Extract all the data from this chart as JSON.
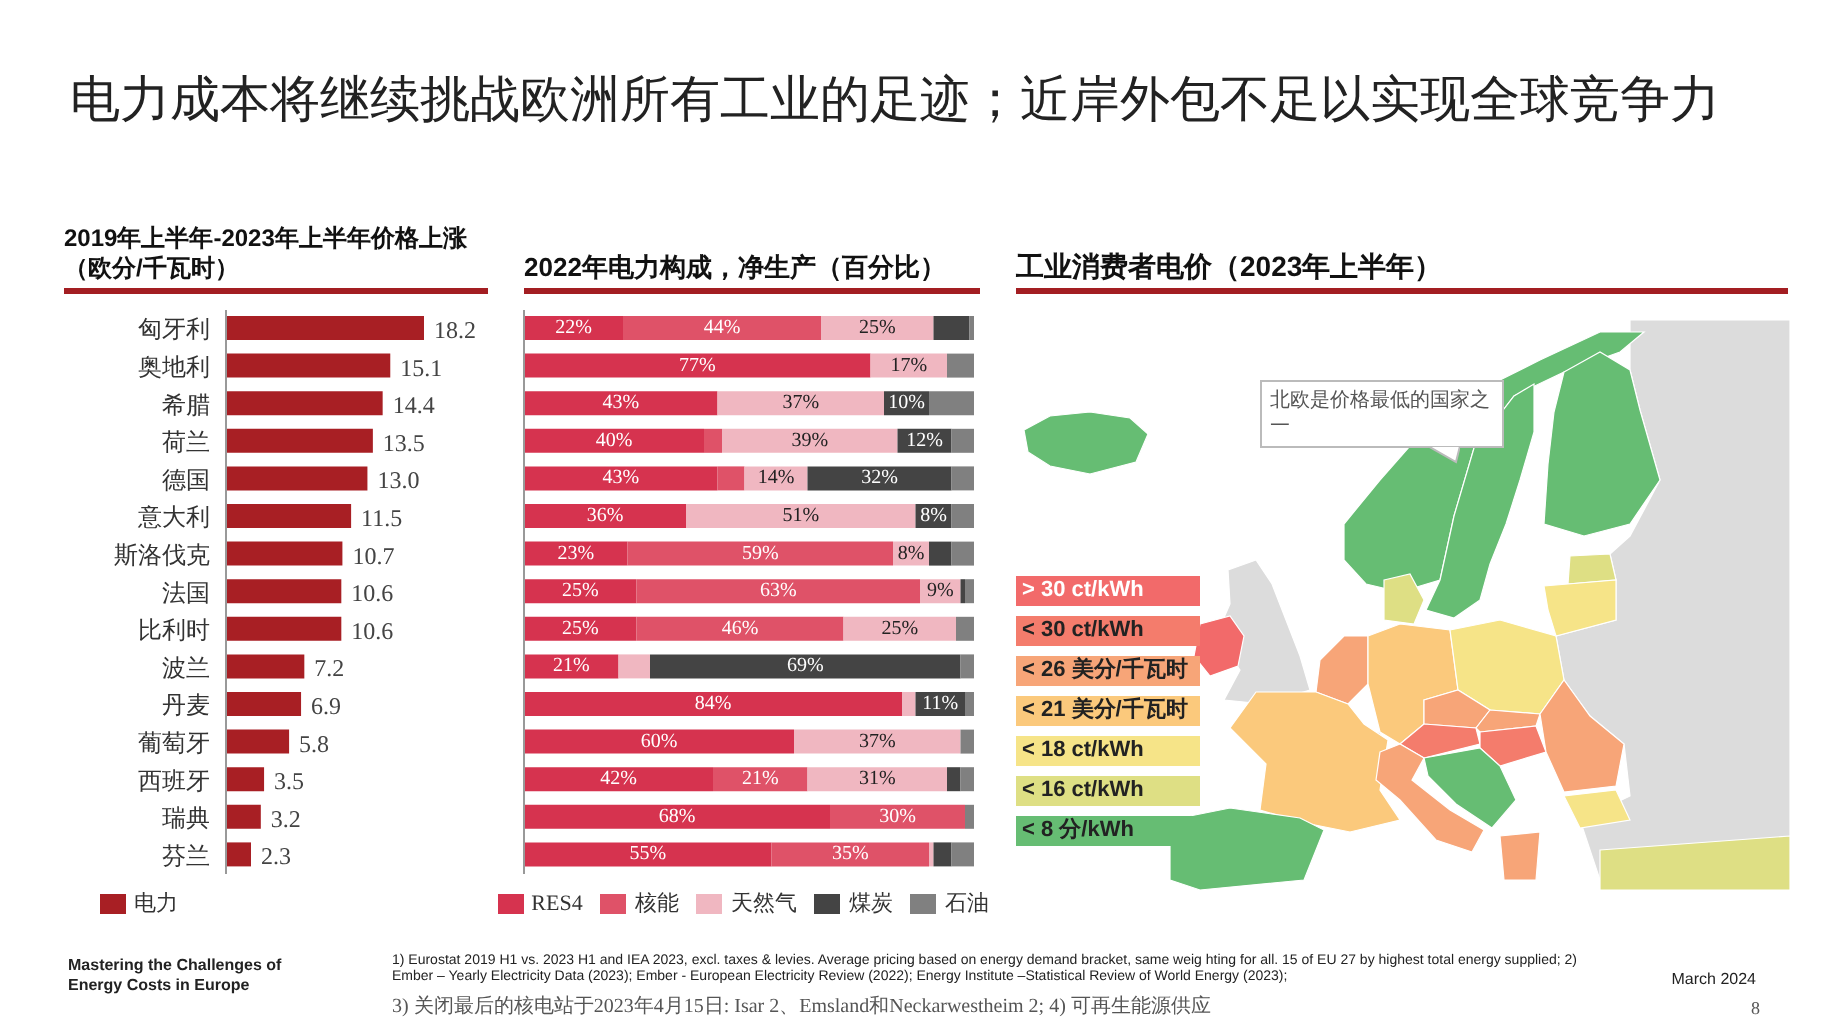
{
  "chart_data": [
    {
      "type": "other",
      "title": "电力成本将继续挑战欧洲所有工业的足迹；近岸外包不足以实现全球竞争力"
    },
    {
      "type": "bar",
      "orientation": "horizontal",
      "title": "2019年上半年-2023年上半年价格上涨（欧分/千瓦时）",
      "categories": [
        "匈牙利",
        "奥地利",
        "希腊",
        "荷兰",
        "德国",
        "意大利",
        "斯洛伐克",
        "法国",
        "比利时",
        "波兰",
        "丹麦",
        "葡萄牙",
        "西班牙",
        "瑞典",
        "芬兰"
      ],
      "series": [
        {
          "name": "电力",
          "color": "#a81f24",
          "values": [
            18.2,
            15.1,
            14.4,
            13.5,
            13.0,
            11.5,
            10.7,
            10.6,
            10.6,
            7.2,
            6.9,
            5.8,
            3.5,
            3.2,
            2.3
          ],
          "value_labels": [
            "18.2",
            "15.1",
            "14.4",
            "13.5",
            "13.0",
            "11.5",
            "10.7",
            "10.6",
            "10.6",
            "7.2",
            "6.9",
            "5.8",
            "3.5",
            "3.2",
            "2.3"
          ]
        }
      ],
      "legend": "bottom left",
      "tick_labels": "y"
    },
    {
      "type": "bar",
      "orientation": "horizontal",
      "stacked": true,
      "title": "2022年电力构成，净生产（百分比）",
      "categories": [
        null,
        null,
        null,
        null,
        null,
        null,
        null,
        null,
        null,
        null,
        null,
        null,
        null,
        null,
        null
      ],
      "series": [
        {
          "name": "RES4",
          "color": "#d6334f",
          "values": [
            22,
            77,
            43,
            40,
            43,
            36,
            23,
            25,
            25,
            21,
            84,
            60,
            42,
            68,
            55
          ],
          "value_labels": [
            "22%",
            "77%",
            "43%",
            "40%",
            "43%",
            "36%",
            "23%",
            "25%",
            "25%",
            "21%",
            "84%",
            "60%",
            "42%",
            "68%",
            "55%"
          ]
        },
        {
          "name": "核能",
          "color": "#df5268",
          "values": [
            44,
            0,
            0,
            4,
            6,
            0,
            59,
            63,
            46,
            0,
            0,
            0,
            21,
            30,
            35
          ],
          "value_labels": [
            "44%",
            null,
            null,
            null,
            null,
            null,
            "59%",
            "63%",
            "46%",
            null,
            null,
            null,
            "21%",
            "30%",
            "35%"
          ]
        },
        {
          "name": "天然气",
          "color": "#f0b7c1",
          "values": [
            25,
            17,
            37,
            39,
            14,
            51,
            8,
            9,
            25,
            7,
            3,
            37,
            31,
            0,
            1
          ],
          "value_labels": [
            "25%",
            "17%",
            "37%",
            "39%",
            "14%",
            "51%",
            "8%",
            "9%",
            "25%",
            null,
            null,
            "37%",
            "31%",
            null,
            null
          ]
        },
        {
          "name": "煤炭",
          "color": "#444444",
          "values": [
            8,
            0,
            10,
            12,
            32,
            8,
            5,
            1,
            0,
            69,
            11,
            0,
            3,
            0,
            4
          ],
          "value_labels": [
            null,
            null,
            "10%",
            "12%",
            "32%",
            "8%",
            null,
            null,
            null,
            "69%",
            "11%",
            null,
            null,
            null,
            null
          ]
        },
        {
          "name": "石油",
          "color": "#808080",
          "values": [
            1,
            6,
            10,
            5,
            5,
            5,
            5,
            2,
            4,
            3,
            2,
            3,
            3,
            2,
            5
          ]
        }
      ],
      "legend": "bottom",
      "tick_labels": false
    },
    {
      "type": "other",
      "title": "工业消费者电价（2023年上半年）",
      "categories": [
        "> 30 ct/kWh",
        "< 30 ct/kWh",
        "< 26 美分/千瓦时",
        "< 21 美分/千瓦时",
        "< 18 ct/kWh",
        "< 16 ct/kWh",
        "< 8 分/kWh"
      ],
      "colors": [
        "#f26a6a",
        "#f47c6c",
        "#f7a578",
        "#fbc97c",
        "#f6e488",
        "#dedf84",
        "#66bd73"
      ],
      "annotations": [
        "北欧是价格最低的国家之一"
      ]
    },
    {
      "type": "other",
      "annotations": [
        "Mastering the Challenges of Energy Costs in Europe",
        "1) Eurostat 2019 H1 vs. 2023 H1 and IEA 2023, excl. taxes & levies. Average pricing based on energy demand bracket, same weig hting for all. 15 of EU 27 by highest total energy supplied; 2) Ember – Yearly Electricity Data (2023); Ember - European Electricity Review (2022); Energy Institute –Statistical Review of World Energy (2023);",
        "3) 关闭最后的核电站于2023年4月15日: Isar 2、Emsland和Neckarwestheim 2; 4) 可再生能源供应",
        "March 2024",
        "8"
      ]
    }
  ]
}
